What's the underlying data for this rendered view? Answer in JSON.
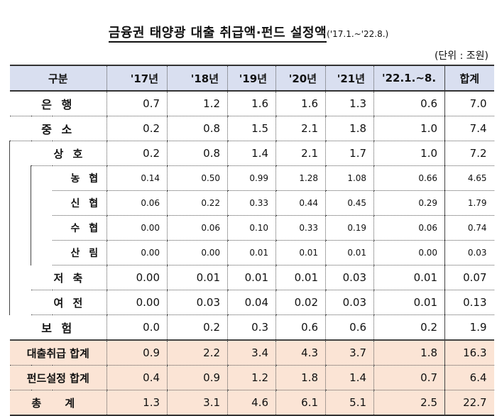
{
  "title": "금융권 태양광 대출 취급액·펀드 설정액",
  "subtitle": "('17.1.~'22.8.)",
  "unit": "(단위 : 조원)",
  "headers": [
    "구분",
    "'17년",
    "'18년",
    "'19년",
    "'20년",
    "'21년",
    "'22.1.~8.",
    "합계"
  ],
  "rows": {
    "bank": {
      "label": "은 행",
      "values": [
        "0.7",
        "1.2",
        "1.6",
        "1.6",
        "1.3",
        "0.6",
        "7.0"
      ]
    },
    "smb": {
      "label": "중 소",
      "values": [
        "0.2",
        "0.8",
        "1.5",
        "2.1",
        "1.8",
        "1.0",
        "7.4"
      ]
    },
    "mutual": {
      "label": "상 호",
      "values": [
        "0.2",
        "0.8",
        "1.4",
        "2.1",
        "1.7",
        "1.0",
        "7.2"
      ]
    },
    "nonghyup": {
      "label": "농 협",
      "values": [
        "0.14",
        "0.50",
        "0.99",
        "1.28",
        "1.08",
        "0.66",
        "4.65"
      ]
    },
    "shinhyup": {
      "label": "신 협",
      "values": [
        "0.06",
        "0.22",
        "0.33",
        "0.44",
        "0.45",
        "0.29",
        "1.79"
      ]
    },
    "suhyup": {
      "label": "수 협",
      "values": [
        "0.00",
        "0.06",
        "0.10",
        "0.33",
        "0.19",
        "0.06",
        "0.74"
      ]
    },
    "sanrim": {
      "label": "산 림",
      "values": [
        "0.00",
        "0.00",
        "0.01",
        "0.01",
        "0.01",
        "0.00",
        "0.03"
      ]
    },
    "savings": {
      "label": "저 축",
      "values": [
        "0.00",
        "0.01",
        "0.01",
        "0.01",
        "0.03",
        "0.01",
        "0.07"
      ]
    },
    "credit": {
      "label": "여 전",
      "values": [
        "0.00",
        "0.03",
        "0.04",
        "0.02",
        "0.03",
        "0.01",
        "0.13"
      ]
    },
    "insurance": {
      "label": "보 험",
      "values": [
        "0.0",
        "0.2",
        "0.3",
        "0.6",
        "0.6",
        "0.2",
        "1.9"
      ]
    },
    "loan_total": {
      "label": "대출취급 합계",
      "values": [
        "0.9",
        "2.2",
        "3.4",
        "4.3",
        "3.7",
        "1.8",
        "16.3"
      ]
    },
    "fund_total": {
      "label": "펀드설정 합계",
      "values": [
        "0.4",
        "0.9",
        "1.2",
        "1.8",
        "1.4",
        "0.7",
        "6.4"
      ]
    },
    "grand_total": {
      "label": "총 계",
      "values": [
        "1.3",
        "3.1",
        "4.6",
        "6.1",
        "5.1",
        "2.5",
        "22.7"
      ]
    }
  }
}
